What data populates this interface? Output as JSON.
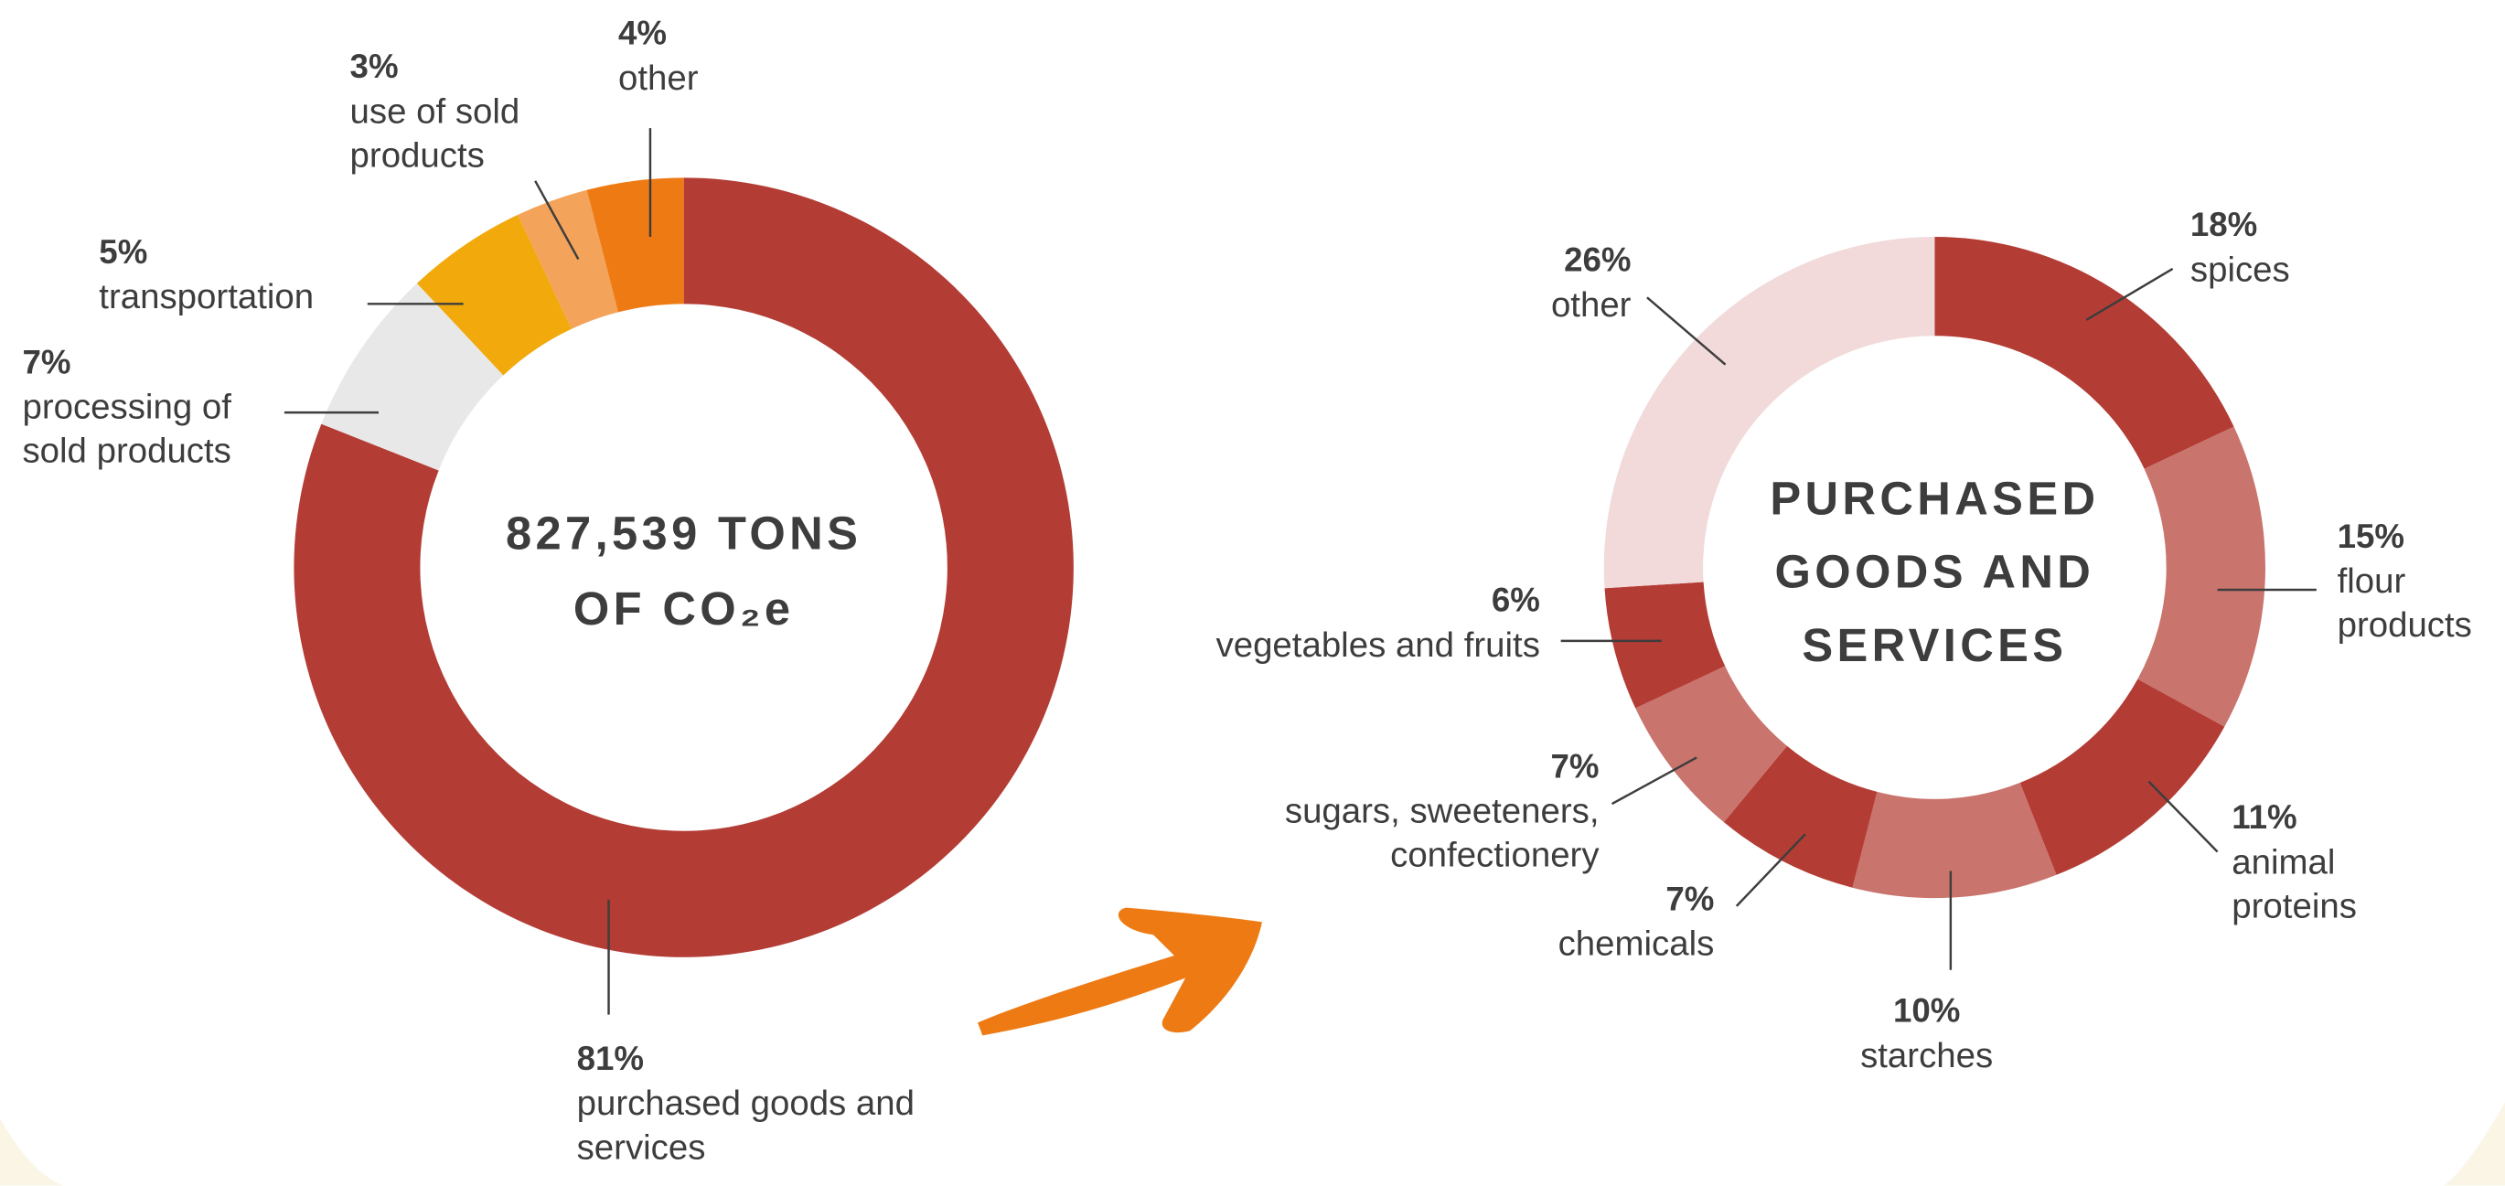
{
  "chart_data": [
    {
      "type": "donut",
      "center_text": [
        "827,539 TONS",
        "OF CO₂e"
      ],
      "categories": [
        "purchased goods and services",
        "processing of sold products",
        "transportation",
        "use of sold products",
        "other"
      ],
      "values": [
        81,
        7,
        5,
        3,
        4
      ],
      "value_labels": [
        "81%",
        "7%",
        "5%",
        "3%",
        "4%"
      ],
      "colors": [
        "#b33d35",
        "#e8e8e8",
        "#f2a90c",
        "#f3a35a",
        "#ee7a14"
      ]
    },
    {
      "type": "donut",
      "center_text": [
        "PURCHASED",
        "GOODS AND",
        "SERVICES"
      ],
      "categories": [
        "spices",
        "flour products",
        "animal proteins",
        "starches",
        "chemicals",
        "sugars, sweeteners, confectionery",
        "vegetables and fruits",
        "other"
      ],
      "values": [
        18,
        15,
        11,
        10,
        7,
        7,
        6,
        26
      ],
      "value_labels": [
        "18%",
        "15%",
        "11%",
        "10%",
        "7%",
        "7%",
        "6%",
        "26%"
      ],
      "colors": [
        "#b33d35",
        "#c9746d",
        "#b33d35",
        "#c9746d",
        "#b33d35",
        "#c9746d",
        "#b33d35",
        "#f2dada"
      ]
    }
  ]
}
